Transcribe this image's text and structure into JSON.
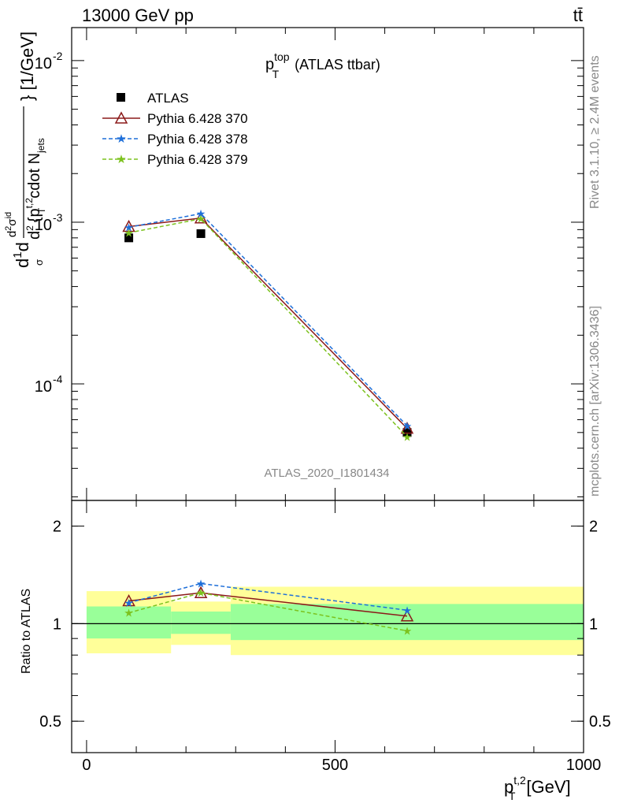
{
  "header": {
    "left": "13000 GeV pp",
    "right": "tt̄"
  },
  "side_labels": {
    "rivet": "Rivet 3.1.10, ≥ 2.4M events",
    "mcplots": "mcplots.cern.ch [arXiv:1306.3436]"
  },
  "plot_title": {
    "main": "p",
    "sup": "top",
    "sub": "T",
    "rest": "(ATLAS ttbar)"
  },
  "analysis_id": "ATLAS_2020_I1801434",
  "colors": {
    "data": "#000000",
    "pythia370": "#8b1a1a",
    "pythia378": "#1e6fd9",
    "pythia379": "#7cc21e",
    "band_inner": "#99ff99",
    "band_outer": "#ffff99"
  },
  "chart_data": [
    {
      "type": "scatter",
      "panel": "main",
      "x_ticks": [
        "0",
        "500",
        "1000"
      ],
      "y_ticks": [
        "10",
        "10",
        "10"
      ],
      "y_tick_exponents": [
        "-4",
        "-3",
        "-2"
      ],
      "ylabel_parts": {
        "d1": "d",
        "one": "1",
        "dd": "d",
        "sigma": "σ",
        "d2sigma": "d",
        "d2sup": "2",
        "sigma2": "σ",
        "id": "id",
        "den": "d",
        "densup": "2",
        "brace": "{p",
        "pt_sup": "t,2",
        "pt_sub": "T",
        "cdot": "cdot N",
        "jets": "jets",
        "units": "} [1/GeV]"
      },
      "xlim": [
        -30,
        1000
      ],
      "ylim": [
        1.9e-05,
        0.016
      ],
      "yscale": "log",
      "legend_position": "top-left",
      "series": [
        {
          "name": "ATLAS",
          "marker": "square",
          "x": [
            85,
            230,
            645
          ],
          "y": [
            0.0008,
            0.00085,
            5e-05
          ]
        },
        {
          "name": "Pythia 6.428 370",
          "marker": "triangle",
          "style": "solid",
          "x": [
            85,
            230,
            645
          ],
          "y": [
            0.00094,
            0.00106,
            5.3e-05
          ]
        },
        {
          "name": "Pythia 6.428 378",
          "marker": "star",
          "style": "dashed",
          "x": [
            85,
            230,
            645
          ],
          "y": [
            0.00093,
            0.00113,
            5.5e-05
          ]
        },
        {
          "name": "Pythia 6.428 379",
          "marker": "star",
          "style": "dashed",
          "x": [
            85,
            230,
            645
          ],
          "y": [
            0.00086,
            0.00105,
            4.7e-05
          ]
        }
      ]
    },
    {
      "type": "line",
      "panel": "ratio",
      "ylabel": "Ratio to ATLAS",
      "xlabel_parts": {
        "main": "p",
        "sup": "t,2",
        "sub": "T",
        "units": "[GeV]"
      },
      "x_ticks": [
        "0",
        "500",
        "1000"
      ],
      "y_ticks": [
        "0.5",
        "1",
        "2"
      ],
      "xlim": [
        -30,
        1000
      ],
      "ylim": [
        0.4,
        2.4
      ],
      "yscale": "log",
      "reference_line": 1,
      "bands": [
        {
          "x0": 0,
          "x1": 170,
          "inner": [
            0.9,
            1.13
          ],
          "outer": [
            0.81,
            1.26
          ]
        },
        {
          "x0": 170,
          "x1": 290,
          "inner": [
            0.93,
            1.09
          ],
          "outer": [
            0.86,
            1.17
          ]
        },
        {
          "x0": 290,
          "x1": 1000,
          "inner": [
            0.89,
            1.15
          ],
          "outer": [
            0.8,
            1.3
          ]
        }
      ],
      "series": [
        {
          "name": "Pythia 6.428 370",
          "x": [
            85,
            230,
            645
          ],
          "y": [
            1.175,
            1.245,
            1.055
          ]
        },
        {
          "name": "Pythia 6.428 378",
          "x": [
            85,
            230,
            645
          ],
          "y": [
            1.16,
            1.33,
            1.1
          ]
        },
        {
          "name": "Pythia 6.428 379",
          "x": [
            85,
            230,
            645
          ],
          "y": [
            1.08,
            1.245,
            0.95
          ]
        }
      ]
    }
  ]
}
